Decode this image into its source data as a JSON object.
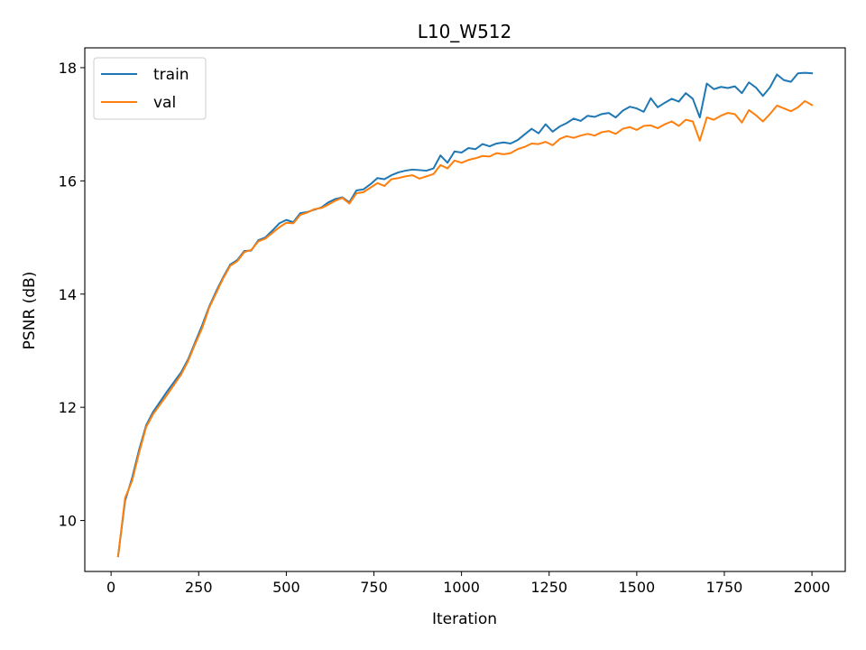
{
  "chart_data": {
    "type": "line",
    "title": "L10_W512",
    "xlabel": "Iteration",
    "ylabel": "PSNR (dB)",
    "xlim": [
      -75,
      2095
    ],
    "ylim": [
      9.1,
      18.35
    ],
    "xticks": [
      0,
      250,
      500,
      750,
      1000,
      1250,
      1500,
      1750,
      2000
    ],
    "yticks": [
      10,
      12,
      14,
      16,
      18
    ],
    "grid": false,
    "legend_position": "top-left",
    "series": [
      {
        "name": "train",
        "color": "#1f77b4",
        "x": [
          20,
          40,
          60,
          80,
          100,
          120,
          140,
          160,
          180,
          200,
          220,
          240,
          260,
          280,
          300,
          320,
          340,
          360,
          380,
          400,
          420,
          440,
          460,
          480,
          500,
          520,
          540,
          560,
          580,
          600,
          620,
          640,
          660,
          680,
          700,
          720,
          740,
          760,
          780,
          800,
          820,
          840,
          860,
          880,
          900,
          920,
          940,
          960,
          980,
          1000,
          1020,
          1040,
          1060,
          1080,
          1100,
          1120,
          1140,
          1160,
          1180,
          1200,
          1220,
          1240,
          1260,
          1280,
          1300,
          1320,
          1340,
          1360,
          1380,
          1400,
          1420,
          1440,
          1460,
          1480,
          1500,
          1520,
          1540,
          1560,
          1580,
          1600,
          1620,
          1640,
          1660,
          1680,
          1700,
          1720,
          1740,
          1760,
          1780,
          1800,
          1820,
          1840,
          1860,
          1880,
          1900,
          1920,
          1940,
          1960,
          1980,
          2000
        ],
        "y": [
          9.37,
          10.35,
          10.75,
          11.25,
          11.68,
          11.92,
          12.1,
          12.28,
          12.45,
          12.62,
          12.85,
          13.15,
          13.45,
          13.78,
          14.05,
          14.3,
          14.52,
          14.6,
          14.76,
          14.77,
          14.95,
          15.0,
          15.12,
          15.25,
          15.31,
          15.27,
          15.43,
          15.45,
          15.49,
          15.53,
          15.62,
          15.68,
          15.71,
          15.62,
          15.83,
          15.85,
          15.94,
          16.05,
          16.03,
          16.1,
          16.15,
          16.18,
          16.2,
          16.19,
          16.18,
          16.22,
          16.45,
          16.32,
          16.52,
          16.5,
          16.58,
          16.56,
          16.65,
          16.61,
          16.66,
          16.68,
          16.66,
          16.72,
          16.82,
          16.92,
          16.84,
          17.0,
          16.87,
          16.96,
          17.02,
          17.1,
          17.06,
          17.15,
          17.13,
          17.18,
          17.2,
          17.12,
          17.24,
          17.31,
          17.28,
          17.22,
          17.46,
          17.3,
          17.38,
          17.45,
          17.4,
          17.55,
          17.45,
          17.12,
          17.72,
          17.62,
          17.66,
          17.64,
          17.67,
          17.55,
          17.74,
          17.65,
          17.5,
          17.65,
          17.88,
          17.78,
          17.75,
          17.9,
          17.91,
          17.9
        ]
      },
      {
        "name": "val",
        "color": "#ff7f0e",
        "x": [
          20,
          40,
          60,
          80,
          100,
          120,
          140,
          160,
          180,
          200,
          220,
          240,
          260,
          280,
          300,
          320,
          340,
          360,
          380,
          400,
          420,
          440,
          460,
          480,
          500,
          520,
          540,
          560,
          580,
          600,
          620,
          640,
          660,
          680,
          700,
          720,
          740,
          760,
          780,
          800,
          820,
          840,
          860,
          880,
          900,
          920,
          940,
          960,
          980,
          1000,
          1020,
          1040,
          1060,
          1080,
          1100,
          1120,
          1140,
          1160,
          1180,
          1200,
          1220,
          1240,
          1260,
          1280,
          1300,
          1320,
          1340,
          1360,
          1380,
          1400,
          1420,
          1440,
          1460,
          1480,
          1500,
          1520,
          1540,
          1560,
          1580,
          1600,
          1620,
          1640,
          1660,
          1680,
          1700,
          1720,
          1740,
          1760,
          1780,
          1800,
          1820,
          1840,
          1860,
          1880,
          1900,
          1920,
          1940,
          1960,
          1980,
          2000
        ],
        "y": [
          9.37,
          10.4,
          10.7,
          11.2,
          11.65,
          11.88,
          12.05,
          12.22,
          12.4,
          12.58,
          12.82,
          13.12,
          13.4,
          13.76,
          14.02,
          14.28,
          14.5,
          14.58,
          14.74,
          14.78,
          14.93,
          14.98,
          15.08,
          15.18,
          15.26,
          15.25,
          15.4,
          15.44,
          15.5,
          15.52,
          15.58,
          15.65,
          15.7,
          15.6,
          15.78,
          15.8,
          15.88,
          15.96,
          15.91,
          16.03,
          16.05,
          16.08,
          16.1,
          16.04,
          16.08,
          16.12,
          16.28,
          16.22,
          16.36,
          16.32,
          16.37,
          16.4,
          16.44,
          16.43,
          16.49,
          16.47,
          16.49,
          16.56,
          16.6,
          16.66,
          16.65,
          16.69,
          16.63,
          16.74,
          16.79,
          16.76,
          16.8,
          16.83,
          16.8,
          16.86,
          16.88,
          16.83,
          16.92,
          16.95,
          16.9,
          16.97,
          16.98,
          16.93,
          17.0,
          17.05,
          16.97,
          17.08,
          17.05,
          16.71,
          17.12,
          17.08,
          17.15,
          17.2,
          17.18,
          17.03,
          17.25,
          17.16,
          17.05,
          17.18,
          17.33,
          17.28,
          17.23,
          17.3,
          17.41,
          17.34
        ]
      }
    ]
  }
}
